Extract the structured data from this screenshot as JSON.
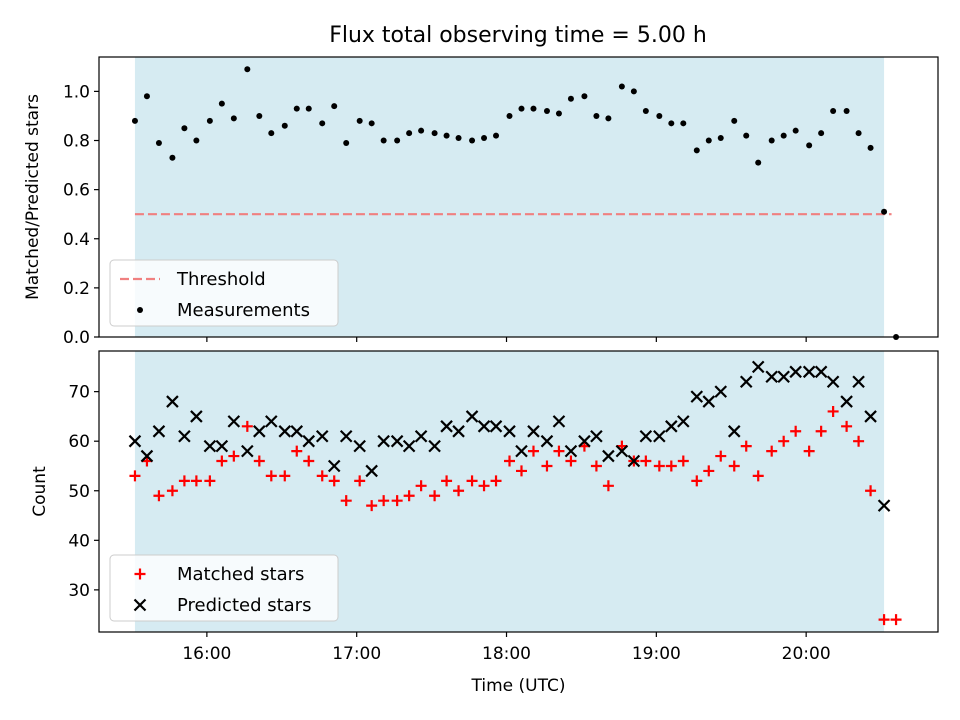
{
  "figure": {
    "title": "Flux total observing time = 5.00 h"
  },
  "colors": {
    "observing_window": "#add8e6",
    "threshold": "#f08080",
    "measurement": "#000000",
    "matched": "#ff0000",
    "predicted": "#000000"
  },
  "chart_data": [
    {
      "type": "scatter",
      "panel": "top",
      "title": "Flux total observing time = 5.00 h",
      "xlabel": "",
      "ylabel": "Matched/Predicted stars",
      "x_units": "hours (UTC)",
      "xlim": [
        15.28,
        20.88
      ],
      "ylim": [
        0.0,
        1.14
      ],
      "yticks": [
        0.0,
        0.2,
        0.4,
        0.6,
        0.8,
        1.0
      ],
      "ytick_labels": [
        "0.0",
        "0.2",
        "0.4",
        "0.6",
        "0.8",
        "1.0"
      ],
      "grid": false,
      "shaded_region": [
        15.52,
        20.52
      ],
      "legend": {
        "location": "lower left",
        "entries": [
          "Threshold",
          "Measurements"
        ]
      },
      "threshold": {
        "name": "Threshold",
        "y": 0.5,
        "x_range": [
          15.52,
          20.57
        ],
        "style": "dashed"
      },
      "series": [
        {
          "name": "Measurements",
          "marker": "dot",
          "x": [
            15.52,
            15.6,
            15.68,
            15.77,
            15.85,
            15.93,
            16.02,
            16.1,
            16.18,
            16.27,
            16.35,
            16.43,
            16.52,
            16.6,
            16.68,
            16.77,
            16.85,
            16.93,
            17.02,
            17.1,
            17.18,
            17.27,
            17.35,
            17.43,
            17.52,
            17.6,
            17.68,
            17.77,
            17.85,
            17.93,
            18.02,
            18.1,
            18.18,
            18.27,
            18.35,
            18.43,
            18.52,
            18.6,
            18.68,
            18.77,
            18.85,
            18.93,
            19.02,
            19.1,
            19.18,
            19.27,
            19.35,
            19.43,
            19.52,
            19.6,
            19.68,
            19.77,
            19.85,
            19.93,
            20.02,
            20.1,
            20.18,
            20.27,
            20.35,
            20.43,
            20.52,
            20.6
          ],
          "y": [
            0.88,
            0.98,
            0.79,
            0.73,
            0.85,
            0.8,
            0.88,
            0.95,
            0.89,
            1.09,
            0.9,
            0.83,
            0.86,
            0.93,
            0.93,
            0.87,
            0.94,
            0.79,
            0.88,
            0.87,
            0.8,
            0.8,
            0.83,
            0.84,
            0.83,
            0.82,
            0.81,
            0.8,
            0.81,
            0.82,
            0.9,
            0.93,
            0.93,
            0.92,
            0.91,
            0.97,
            0.98,
            0.9,
            0.89,
            1.02,
            1.0,
            0.92,
            0.9,
            0.87,
            0.87,
            0.76,
            0.8,
            0.81,
            0.88,
            0.82,
            0.71,
            0.8,
            0.82,
            0.84,
            0.78,
            0.83,
            0.92,
            0.92,
            0.83,
            0.77,
            0.51,
            0.0
          ]
        }
      ]
    },
    {
      "type": "scatter",
      "panel": "bottom",
      "xlabel": "Time (UTC)",
      "ylabel": "Count",
      "x_units": "hours (UTC)",
      "xlim": [
        15.28,
        20.88
      ],
      "ylim": [
        21.5,
        78.2
      ],
      "yticks": [
        30,
        40,
        50,
        60,
        70
      ],
      "ytick_labels": [
        "30",
        "40",
        "50",
        "60",
        "70"
      ],
      "xticks": [
        16,
        17,
        18,
        19,
        20
      ],
      "xtick_labels": [
        "16:00",
        "17:00",
        "18:00",
        "19:00",
        "20:00"
      ],
      "grid": false,
      "shaded_region": [
        15.52,
        20.52
      ],
      "legend": {
        "location": "lower left",
        "entries": [
          "Matched stars",
          "Predicted stars"
        ]
      },
      "series": [
        {
          "name": "Matched stars",
          "marker": "plus",
          "x": [
            15.52,
            15.6,
            15.68,
            15.77,
            15.85,
            15.93,
            16.02,
            16.1,
            16.18,
            16.27,
            16.35,
            16.43,
            16.52,
            16.6,
            16.68,
            16.77,
            16.85,
            16.93,
            17.02,
            17.1,
            17.18,
            17.27,
            17.35,
            17.43,
            17.52,
            17.6,
            17.68,
            17.77,
            17.85,
            17.93,
            18.02,
            18.1,
            18.18,
            18.27,
            18.35,
            18.43,
            18.52,
            18.6,
            18.68,
            18.77,
            18.85,
            18.93,
            19.02,
            19.1,
            19.18,
            19.27,
            19.35,
            19.43,
            19.52,
            19.6,
            19.68,
            19.77,
            19.85,
            19.93,
            20.02,
            20.1,
            20.18,
            20.27,
            20.35,
            20.43,
            20.52,
            20.6
          ],
          "y": [
            53,
            56,
            49,
            50,
            52,
            52,
            52,
            56,
            57,
            63,
            56,
            53,
            53,
            58,
            56,
            53,
            52,
            48,
            52,
            47,
            48,
            48,
            49,
            51,
            49,
            52,
            50,
            52,
            51,
            52,
            56,
            54,
            58,
            55,
            58,
            56,
            59,
            55,
            51,
            59,
            56,
            56,
            55,
            55,
            56,
            52,
            54,
            57,
            55,
            59,
            53,
            58,
            60,
            62,
            58,
            62,
            66,
            63,
            60,
            50,
            24,
            24
          ]
        },
        {
          "name": "Predicted stars",
          "marker": "x",
          "x": [
            15.52,
            15.6,
            15.68,
            15.77,
            15.85,
            15.93,
            16.02,
            16.1,
            16.18,
            16.27,
            16.35,
            16.43,
            16.52,
            16.6,
            16.68,
            16.77,
            16.85,
            16.93,
            17.02,
            17.1,
            17.18,
            17.27,
            17.35,
            17.43,
            17.52,
            17.6,
            17.68,
            17.77,
            17.85,
            17.93,
            18.02,
            18.1,
            18.18,
            18.27,
            18.35,
            18.43,
            18.52,
            18.6,
            18.68,
            18.77,
            18.85,
            18.93,
            19.02,
            19.1,
            19.18,
            19.27,
            19.35,
            19.43,
            19.52,
            19.6,
            19.68,
            19.77,
            19.85,
            19.93,
            20.02,
            20.1,
            20.18,
            20.27,
            20.35,
            20.43,
            20.52
          ],
          "y": [
            60,
            57,
            62,
            68,
            61,
            65,
            59,
            59,
            64,
            58,
            62,
            64,
            62,
            62,
            60,
            61,
            55,
            61,
            59,
            54,
            60,
            60,
            59,
            61,
            59,
            63,
            62,
            65,
            63,
            63,
            62,
            58,
            62,
            60,
            64,
            58,
            60,
            61,
            57,
            58,
            56,
            61,
            61,
            63,
            64,
            69,
            68,
            70,
            62,
            72,
            75,
            73,
            73,
            74,
            74,
            74,
            72,
            68,
            72,
            65,
            47
          ]
        }
      ]
    }
  ]
}
